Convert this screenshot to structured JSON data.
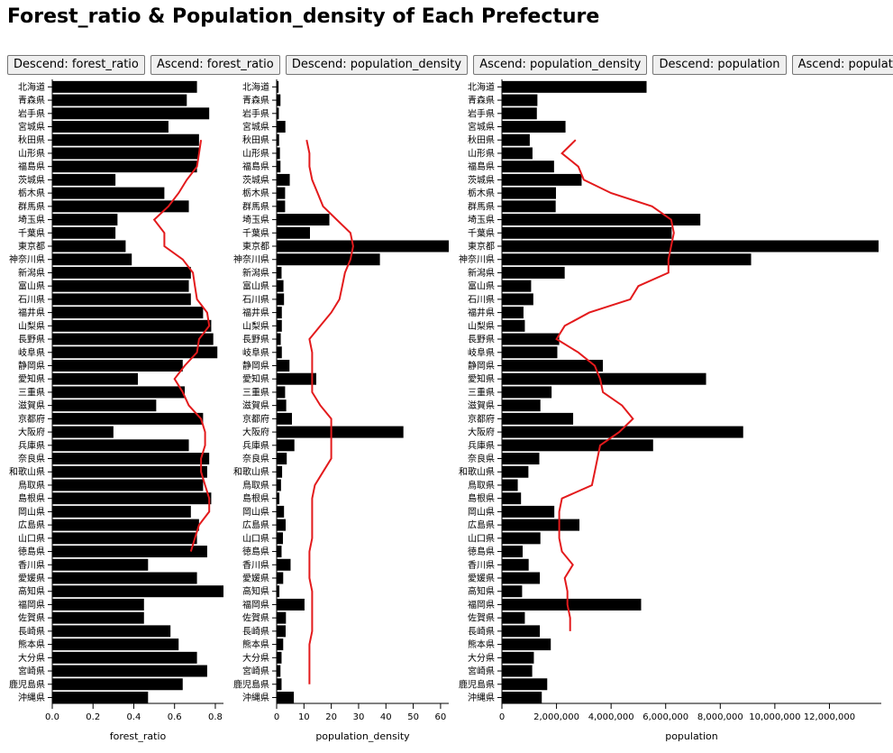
{
  "page": {
    "title": "Forest_ratio & Population_density of Each Prefecture"
  },
  "buttons": [
    {
      "label": "Descend: forest_ratio"
    },
    {
      "label": "Ascend: forest_ratio"
    },
    {
      "label": "Descend: population_density"
    },
    {
      "label": "Ascend: population_density"
    },
    {
      "label": "Descend: population"
    },
    {
      "label": "Ascend: population"
    }
  ],
  "colors": {
    "bar": "#000000",
    "line": "#e31a1c"
  },
  "chart_data": [
    {
      "type": "bar",
      "orientation": "horizontal",
      "xlabel": "forest_ratio",
      "xlim": [
        0,
        0.84
      ],
      "xticks": [
        "0.0",
        "0.2",
        "0.4",
        "0.6",
        "0.8"
      ],
      "xtick_values": [
        0,
        0.2,
        0.4,
        0.6,
        0.8
      ],
      "categories": [
        "北海道",
        "青森県",
        "岩手県",
        "宮城県",
        "秋田県",
        "山形県",
        "福島県",
        "茨城県",
        "栃木県",
        "群馬県",
        "埼玉県",
        "千葉県",
        "東京都",
        "神奈川県",
        "新潟県",
        "富山県",
        "石川県",
        "福井県",
        "山梨県",
        "長野県",
        "岐阜県",
        "静岡県",
        "愛知県",
        "三重県",
        "滋賀県",
        "京都府",
        "大阪府",
        "兵庫県",
        "奈良県",
        "和歌山県",
        "鳥取県",
        "島根県",
        "岡山県",
        "広島県",
        "山口県",
        "徳島県",
        "香川県",
        "愛媛県",
        "高知県",
        "福岡県",
        "佐賀県",
        "長崎県",
        "熊本県",
        "大分県",
        "宮崎県",
        "鹿児島県",
        "沖縄県"
      ],
      "values": [
        0.71,
        0.66,
        0.77,
        0.57,
        0.72,
        0.72,
        0.71,
        0.31,
        0.55,
        0.67,
        0.32,
        0.31,
        0.36,
        0.39,
        0.68,
        0.67,
        0.68,
        0.74,
        0.78,
        0.79,
        0.81,
        0.64,
        0.42,
        0.65,
        0.51,
        0.74,
        0.3,
        0.67,
        0.77,
        0.76,
        0.74,
        0.78,
        0.68,
        0.72,
        0.71,
        0.76,
        0.47,
        0.71,
        0.84,
        0.45,
        0.45,
        0.58,
        0.62,
        0.71,
        0.76,
        0.64,
        0.47
      ],
      "line_values": [
        0.73,
        0.72,
        0.71,
        0.66,
        0.62,
        0.57,
        0.5,
        0.55,
        0.55,
        0.64,
        0.69,
        0.7,
        0.71,
        0.76,
        0.77,
        0.72,
        0.71,
        0.65,
        0.6,
        0.64,
        0.67,
        0.73,
        0.75,
        0.75,
        0.73,
        0.73,
        0.75,
        0.77,
        0.77,
        0.72,
        0.7,
        0.68
      ],
      "line_start_index": 4
    },
    {
      "type": "bar",
      "orientation": "horizontal",
      "xlabel": "population_density",
      "xlim": [
        0,
        63
      ],
      "xticks": [
        "0",
        "10",
        "20",
        "30",
        "40",
        "50",
        "60"
      ],
      "xtick_values": [
        0,
        10,
        20,
        30,
        40,
        50,
        60
      ],
      "categories": [
        "北海道",
        "青森県",
        "岩手県",
        "宮城県",
        "秋田県",
        "山形県",
        "福島県",
        "茨城県",
        "栃木県",
        "群馬県",
        "埼玉県",
        "千葉県",
        "東京都",
        "神奈川県",
        "新潟県",
        "富山県",
        "石川県",
        "福井県",
        "山梨県",
        "長野県",
        "岐阜県",
        "静岡県",
        "愛知県",
        "三重県",
        "滋賀県",
        "京都府",
        "大阪府",
        "兵庫県",
        "奈良県",
        "和歌山県",
        "鳥取県",
        "島根県",
        "岡山県",
        "広島県",
        "山口県",
        "徳島県",
        "香川県",
        "愛媛県",
        "高知県",
        "福岡県",
        "佐賀県",
        "長崎県",
        "熊本県",
        "大分県",
        "宮崎県",
        "鹿児島県",
        "沖縄県"
      ],
      "values": [
        0.7,
        1.4,
        0.8,
        3.2,
        0.9,
        1.2,
        1.4,
        4.8,
        3.1,
        3.1,
        19.3,
        12.2,
        63,
        37.8,
        1.8,
        2.5,
        2.7,
        1.9,
        1.9,
        1.5,
        1.9,
        4.7,
        14.5,
        3.1,
        3.5,
        5.6,
        46.4,
        6.5,
        3.7,
        2,
        1.6,
        1,
        2.7,
        3.3,
        2.3,
        1.8,
        5.1,
        2.4,
        1,
        10.2,
        3.4,
        3.3,
        2.4,
        1.8,
        1.4,
        1.8,
        6.3
      ],
      "line_values": [
        11,
        12,
        12,
        13,
        15,
        17,
        22,
        27,
        28,
        27,
        25,
        24,
        23,
        20,
        16,
        12,
        13,
        13,
        13,
        13,
        16,
        20,
        20,
        20,
        20,
        17,
        14,
        13,
        13,
        13,
        13,
        12,
        12,
        12,
        13,
        13,
        13,
        13,
        12,
        12,
        12,
        12
      ],
      "line_start_index": 4
    },
    {
      "type": "bar",
      "orientation": "horizontal",
      "xlabel": "population",
      "xlim": [
        0,
        13900000
      ],
      "xticks": [
        "0",
        "2,000,000",
        "4,000,000",
        "6,000,000",
        "8,000,000",
        "10,000,000",
        "12,000,000"
      ],
      "xtick_values": [
        0,
        2000000,
        4000000,
        6000000,
        8000000,
        10000000,
        12000000
      ],
      "categories": [
        "北海道",
        "青森県",
        "岩手県",
        "宮城県",
        "秋田県",
        "山形県",
        "福島県",
        "茨城県",
        "栃木県",
        "群馬県",
        "埼玉県",
        "千葉県",
        "東京都",
        "神奈川県",
        "新潟県",
        "富山県",
        "石川県",
        "福井県",
        "山梨県",
        "長野県",
        "岐阜県",
        "静岡県",
        "愛知県",
        "三重県",
        "滋賀県",
        "京都府",
        "大阪府",
        "兵庫県",
        "奈良県",
        "和歌山県",
        "鳥取県",
        "島根県",
        "岡山県",
        "広島県",
        "山口県",
        "徳島県",
        "香川県",
        "愛媛県",
        "高知県",
        "福岡県",
        "佐賀県",
        "長崎県",
        "熊本県",
        "大分県",
        "宮崎県",
        "鹿児島県",
        "沖縄県"
      ],
      "values": [
        5300000,
        1300000,
        1280000,
        2330000,
        1020000,
        1120000,
        1910000,
        2920000,
        1980000,
        1970000,
        7270000,
        6220000,
        13800000,
        9130000,
        2300000,
        1070000,
        1150000,
        790000,
        840000,
        2100000,
        2030000,
        3700000,
        7480000,
        1820000,
        1410000,
        2610000,
        8840000,
        5540000,
        1370000,
        970000,
        580000,
        700000,
        1920000,
        2840000,
        1410000,
        760000,
        980000,
        1390000,
        740000,
        5100000,
        840000,
        1390000,
        1790000,
        1170000,
        1110000,
        1660000,
        1460000
      ],
      "line_values": [
        2700000,
        2200000,
        2800000,
        3000000,
        4000000,
        5500000,
        6200000,
        6300000,
        6200000,
        6100000,
        6100000,
        5000000,
        4700000,
        3200000,
        2300000,
        2000000,
        2800000,
        3400000,
        3600000,
        3700000,
        4400000,
        4800000,
        4300000,
        3600000,
        3500000,
        3400000,
        3300000,
        2200000,
        2100000,
        2100000,
        2100000,
        2200000,
        2600000,
        2300000,
        2400000,
        2400000,
        2500000,
        2500000
      ],
      "line_start_index": 4
    }
  ]
}
